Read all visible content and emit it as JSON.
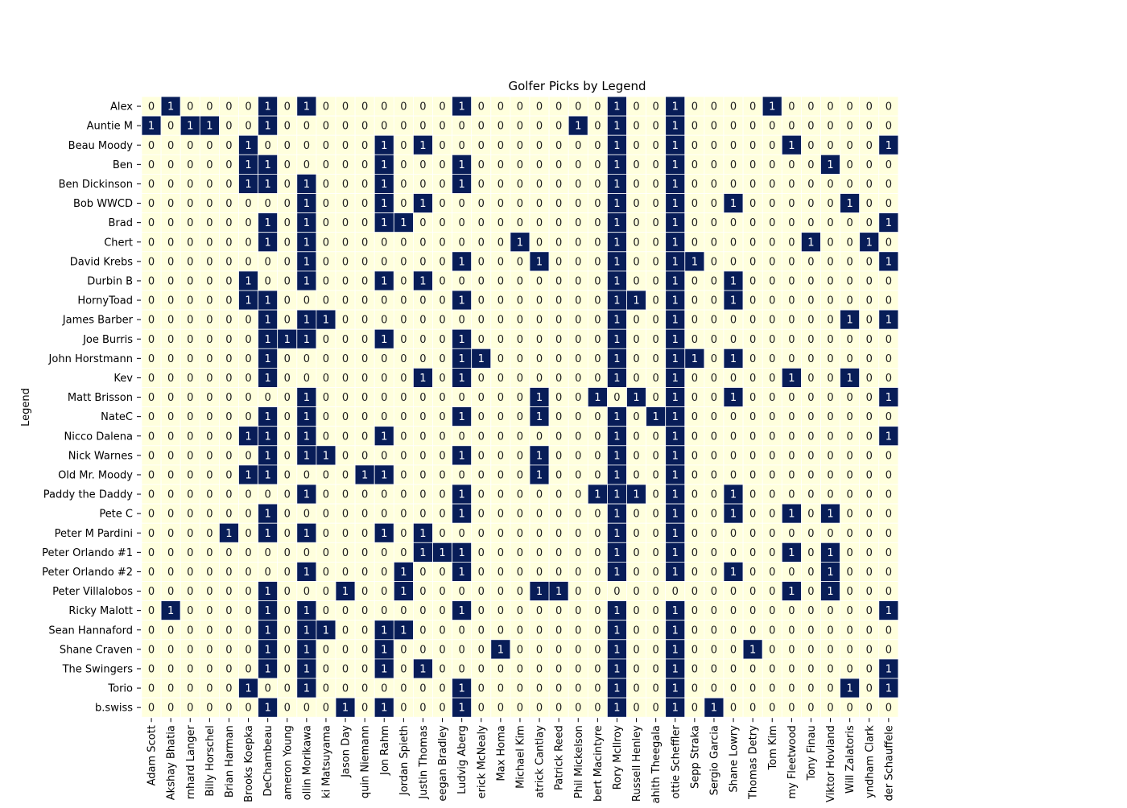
{
  "chart_data": {
    "type": "heatmap",
    "title": "Golfer Picks by Legend",
    "xlabel": "",
    "ylabel": "Legend",
    "colors": {
      "zero": "#ffffdd",
      "one": "#081d58",
      "text_on_zero": "#1a1a1a",
      "text_on_one": "#ffffff"
    },
    "grid": true,
    "x": [
      "Adam Scott",
      "Akshay Bhatia",
      "rnhard Langer",
      "Billy Horschel",
      "Brian Harman",
      "Brooks Koepka",
      "DeChambeau",
      "ameron Young",
      "ollin Morikawa",
      "ki Matsuyama",
      "Jason Day",
      "quin Niemann",
      "Jon Rahm",
      "Jordan Spieth",
      "Justin Thomas",
      "eegan Bradley",
      "Ludvig Aberg",
      "erick McNealy",
      "Max Homa",
      "Michael Kim",
      "atrick Cantlay",
      "Patrick Reed",
      "Phil Mickelson",
      "bert Macintyre",
      "Rory McIlroy",
      "Russell Henley",
      "ahith Theegala",
      "ottie Scheffler",
      "Sepp Straka",
      "Sergio Garcia",
      "Shane Lowry",
      "Thomas Detry",
      "Tom Kim",
      "my Fleetwood",
      "Tony Finau",
      "Viktor Hovland",
      "Will Zalatoris",
      "yndham Clark",
      "der Schauffele"
    ],
    "y": [
      "Alex",
      "Auntie M",
      "Beau Moody",
      "Ben",
      "Ben Dickinson",
      "Bob WWCD",
      "Brad",
      "Chert",
      "David Krebs",
      "Durbin B",
      "HornyToad",
      "James Barber",
      "Joe Burris",
      "John Horstmann",
      "Kev",
      "Matt Brisson",
      "NateC",
      "Nicco Dalena",
      "Nick Warnes",
      "Old Mr. Moody",
      "Paddy the Daddy",
      "Pete C",
      "Peter M Pardini",
      "Peter Orlando #1",
      "Peter Orlando #2",
      "Peter Villalobos",
      "Ricky Malott",
      "Sean Hannaford",
      "Shane Craven",
      "The Swingers",
      "Torio",
      "b.swiss"
    ],
    "values": [
      [
        0,
        1,
        0,
        0,
        0,
        0,
        1,
        0,
        1,
        0,
        0,
        0,
        0,
        0,
        0,
        0,
        1,
        0,
        0,
        0,
        0,
        0,
        0,
        0,
        1,
        0,
        0,
        1,
        0,
        0,
        0,
        0,
        1,
        0,
        0,
        0,
        0,
        0,
        0
      ],
      [
        1,
        0,
        1,
        1,
        0,
        0,
        1,
        0,
        0,
        0,
        0,
        0,
        0,
        0,
        0,
        0,
        0,
        0,
        0,
        0,
        0,
        0,
        1,
        0,
        1,
        0,
        0,
        1,
        0,
        0,
        0,
        0,
        0,
        0,
        0,
        0,
        0,
        0,
        0
      ],
      [
        0,
        0,
        0,
        0,
        0,
        1,
        0,
        0,
        0,
        0,
        0,
        0,
        1,
        0,
        1,
        0,
        0,
        0,
        0,
        0,
        0,
        0,
        0,
        0,
        1,
        0,
        0,
        1,
        0,
        0,
        0,
        0,
        0,
        1,
        0,
        0,
        0,
        0,
        1
      ],
      [
        0,
        0,
        0,
        0,
        0,
        1,
        1,
        0,
        0,
        0,
        0,
        0,
        1,
        0,
        0,
        0,
        1,
        0,
        0,
        0,
        0,
        0,
        0,
        0,
        1,
        0,
        0,
        1,
        0,
        0,
        0,
        0,
        0,
        0,
        0,
        1,
        0,
        0,
        0
      ],
      [
        0,
        0,
        0,
        0,
        0,
        1,
        1,
        0,
        1,
        0,
        0,
        0,
        1,
        0,
        0,
        0,
        1,
        0,
        0,
        0,
        0,
        0,
        0,
        0,
        1,
        0,
        0,
        1,
        0,
        0,
        0,
        0,
        0,
        0,
        0,
        0,
        0,
        0,
        0
      ],
      [
        0,
        0,
        0,
        0,
        0,
        0,
        0,
        0,
        1,
        0,
        0,
        0,
        1,
        0,
        1,
        0,
        0,
        0,
        0,
        0,
        0,
        0,
        0,
        0,
        1,
        0,
        0,
        1,
        0,
        0,
        1,
        0,
        0,
        0,
        0,
        0,
        1,
        0,
        0
      ],
      [
        0,
        0,
        0,
        0,
        0,
        0,
        1,
        0,
        1,
        0,
        0,
        0,
        1,
        1,
        0,
        0,
        0,
        0,
        0,
        0,
        0,
        0,
        0,
        0,
        1,
        0,
        0,
        1,
        0,
        0,
        0,
        0,
        0,
        0,
        0,
        0,
        0,
        0,
        1
      ],
      [
        0,
        0,
        0,
        0,
        0,
        0,
        1,
        0,
        1,
        0,
        0,
        0,
        0,
        0,
        0,
        0,
        0,
        0,
        0,
        1,
        0,
        0,
        0,
        0,
        1,
        0,
        0,
        1,
        0,
        0,
        0,
        0,
        0,
        0,
        1,
        0,
        0,
        1,
        0
      ],
      [
        0,
        0,
        0,
        0,
        0,
        0,
        0,
        0,
        1,
        0,
        0,
        0,
        0,
        0,
        0,
        0,
        1,
        0,
        0,
        0,
        1,
        0,
        0,
        0,
        1,
        0,
        0,
        1,
        1,
        0,
        0,
        0,
        0,
        0,
        0,
        0,
        0,
        0,
        1
      ],
      [
        0,
        0,
        0,
        0,
        0,
        1,
        0,
        0,
        1,
        0,
        0,
        0,
        1,
        0,
        1,
        0,
        0,
        0,
        0,
        0,
        0,
        0,
        0,
        0,
        1,
        0,
        0,
        1,
        0,
        0,
        1,
        0,
        0,
        0,
        0,
        0,
        0,
        0,
        0
      ],
      [
        0,
        0,
        0,
        0,
        0,
        1,
        1,
        0,
        0,
        0,
        0,
        0,
        0,
        0,
        0,
        0,
        1,
        0,
        0,
        0,
        0,
        0,
        0,
        0,
        1,
        1,
        0,
        1,
        0,
        0,
        1,
        0,
        0,
        0,
        0,
        0,
        0,
        0,
        0
      ],
      [
        0,
        0,
        0,
        0,
        0,
        0,
        1,
        0,
        1,
        1,
        0,
        0,
        0,
        0,
        0,
        0,
        0,
        0,
        0,
        0,
        0,
        0,
        0,
        0,
        1,
        0,
        0,
        1,
        0,
        0,
        0,
        0,
        0,
        0,
        0,
        0,
        1,
        0,
        1
      ],
      [
        0,
        0,
        0,
        0,
        0,
        0,
        1,
        1,
        1,
        0,
        0,
        0,
        1,
        0,
        0,
        0,
        1,
        0,
        0,
        0,
        0,
        0,
        0,
        0,
        1,
        0,
        0,
        1,
        0,
        0,
        0,
        0,
        0,
        0,
        0,
        0,
        0,
        0,
        0
      ],
      [
        0,
        0,
        0,
        0,
        0,
        0,
        1,
        0,
        0,
        0,
        0,
        0,
        0,
        0,
        0,
        0,
        1,
        1,
        0,
        0,
        0,
        0,
        0,
        0,
        1,
        0,
        0,
        1,
        1,
        0,
        1,
        0,
        0,
        0,
        0,
        0,
        0,
        0,
        0
      ],
      [
        0,
        0,
        0,
        0,
        0,
        0,
        1,
        0,
        0,
        0,
        0,
        0,
        0,
        0,
        1,
        0,
        1,
        0,
        0,
        0,
        0,
        0,
        0,
        0,
        1,
        0,
        0,
        1,
        0,
        0,
        0,
        0,
        0,
        1,
        0,
        0,
        1,
        0,
        0
      ],
      [
        0,
        0,
        0,
        0,
        0,
        0,
        0,
        0,
        1,
        0,
        0,
        0,
        0,
        0,
        0,
        0,
        0,
        0,
        0,
        0,
        1,
        0,
        0,
        1,
        0,
        1,
        0,
        1,
        0,
        0,
        1,
        0,
        0,
        0,
        0,
        0,
        0,
        0,
        1
      ],
      [
        0,
        0,
        0,
        0,
        0,
        0,
        1,
        0,
        1,
        0,
        0,
        0,
        0,
        0,
        0,
        0,
        1,
        0,
        0,
        0,
        1,
        0,
        0,
        0,
        1,
        0,
        1,
        1,
        0,
        0,
        0,
        0,
        0,
        0,
        0,
        0,
        0,
        0,
        0
      ],
      [
        0,
        0,
        0,
        0,
        0,
        1,
        1,
        0,
        1,
        0,
        0,
        0,
        1,
        0,
        0,
        0,
        0,
        0,
        0,
        0,
        0,
        0,
        0,
        0,
        1,
        0,
        0,
        1,
        0,
        0,
        0,
        0,
        0,
        0,
        0,
        0,
        0,
        0,
        1
      ],
      [
        0,
        0,
        0,
        0,
        0,
        0,
        1,
        0,
        1,
        1,
        0,
        0,
        0,
        0,
        0,
        0,
        1,
        0,
        0,
        0,
        1,
        0,
        0,
        0,
        1,
        0,
        0,
        1,
        0,
        0,
        0,
        0,
        0,
        0,
        0,
        0,
        0,
        0,
        0
      ],
      [
        0,
        0,
        0,
        0,
        0,
        1,
        1,
        0,
        0,
        0,
        0,
        1,
        1,
        0,
        0,
        0,
        0,
        0,
        0,
        0,
        1,
        0,
        0,
        0,
        1,
        0,
        0,
        1,
        0,
        0,
        0,
        0,
        0,
        0,
        0,
        0,
        0,
        0,
        0
      ],
      [
        0,
        0,
        0,
        0,
        0,
        0,
        0,
        0,
        1,
        0,
        0,
        0,
        0,
        0,
        0,
        0,
        1,
        0,
        0,
        0,
        0,
        0,
        0,
        1,
        1,
        1,
        0,
        1,
        0,
        0,
        1,
        0,
        0,
        0,
        0,
        0,
        0,
        0,
        0
      ],
      [
        0,
        0,
        0,
        0,
        0,
        0,
        1,
        0,
        0,
        0,
        0,
        0,
        0,
        0,
        0,
        0,
        1,
        0,
        0,
        0,
        0,
        0,
        0,
        0,
        1,
        0,
        0,
        1,
        0,
        0,
        1,
        0,
        0,
        1,
        0,
        1,
        0,
        0,
        0
      ],
      [
        0,
        0,
        0,
        0,
        1,
        0,
        1,
        0,
        1,
        0,
        0,
        0,
        1,
        0,
        1,
        0,
        0,
        0,
        0,
        0,
        0,
        0,
        0,
        0,
        1,
        0,
        0,
        1,
        0,
        0,
        0,
        0,
        0,
        0,
        0,
        0,
        0,
        0,
        0
      ],
      [
        0,
        0,
        0,
        0,
        0,
        0,
        0,
        0,
        0,
        0,
        0,
        0,
        0,
        0,
        1,
        1,
        1,
        0,
        0,
        0,
        0,
        0,
        0,
        0,
        1,
        0,
        0,
        1,
        0,
        0,
        0,
        0,
        0,
        1,
        0,
        1,
        0,
        0,
        0
      ],
      [
        0,
        0,
        0,
        0,
        0,
        0,
        0,
        0,
        1,
        0,
        0,
        0,
        0,
        1,
        0,
        0,
        1,
        0,
        0,
        0,
        0,
        0,
        0,
        0,
        1,
        0,
        0,
        1,
        0,
        0,
        1,
        0,
        0,
        0,
        0,
        1,
        0,
        0,
        0
      ],
      [
        0,
        0,
        0,
        0,
        0,
        0,
        1,
        0,
        0,
        0,
        1,
        0,
        0,
        1,
        0,
        0,
        0,
        0,
        0,
        0,
        1,
        1,
        0,
        0,
        0,
        0,
        0,
        0,
        0,
        0,
        0,
        0,
        0,
        1,
        0,
        1,
        0,
        0,
        0
      ],
      [
        0,
        1,
        0,
        0,
        0,
        0,
        1,
        0,
        1,
        0,
        0,
        0,
        0,
        0,
        0,
        0,
        1,
        0,
        0,
        0,
        0,
        0,
        0,
        0,
        1,
        0,
        0,
        1,
        0,
        0,
        0,
        0,
        0,
        0,
        0,
        0,
        0,
        0,
        1
      ],
      [
        0,
        0,
        0,
        0,
        0,
        0,
        1,
        0,
        1,
        1,
        0,
        0,
        1,
        1,
        0,
        0,
        0,
        0,
        0,
        0,
        0,
        0,
        0,
        0,
        1,
        0,
        0,
        1,
        0,
        0,
        0,
        0,
        0,
        0,
        0,
        0,
        0,
        0,
        0
      ],
      [
        0,
        0,
        0,
        0,
        0,
        0,
        1,
        0,
        1,
        0,
        0,
        0,
        1,
        0,
        0,
        0,
        0,
        0,
        1,
        0,
        0,
        0,
        0,
        0,
        1,
        0,
        0,
        1,
        0,
        0,
        0,
        1,
        0,
        0,
        0,
        0,
        0,
        0,
        0
      ],
      [
        0,
        0,
        0,
        0,
        0,
        0,
        1,
        0,
        1,
        0,
        0,
        0,
        1,
        0,
        1,
        0,
        0,
        0,
        0,
        0,
        0,
        0,
        0,
        0,
        1,
        0,
        0,
        1,
        0,
        0,
        0,
        0,
        0,
        0,
        0,
        0,
        0,
        0,
        1
      ],
      [
        0,
        0,
        0,
        0,
        0,
        1,
        0,
        0,
        1,
        0,
        0,
        0,
        0,
        0,
        0,
        0,
        1,
        0,
        0,
        0,
        0,
        0,
        0,
        0,
        1,
        0,
        0,
        1,
        0,
        0,
        0,
        0,
        0,
        0,
        0,
        0,
        1,
        0,
        1
      ],
      [
        0,
        0,
        0,
        0,
        0,
        0,
        1,
        0,
        0,
        0,
        1,
        0,
        1,
        0,
        0,
        0,
        1,
        0,
        0,
        0,
        0,
        0,
        0,
        0,
        1,
        0,
        0,
        1,
        0,
        1,
        0,
        0,
        0,
        0,
        0,
        0,
        0,
        0,
        0
      ]
    ]
  }
}
